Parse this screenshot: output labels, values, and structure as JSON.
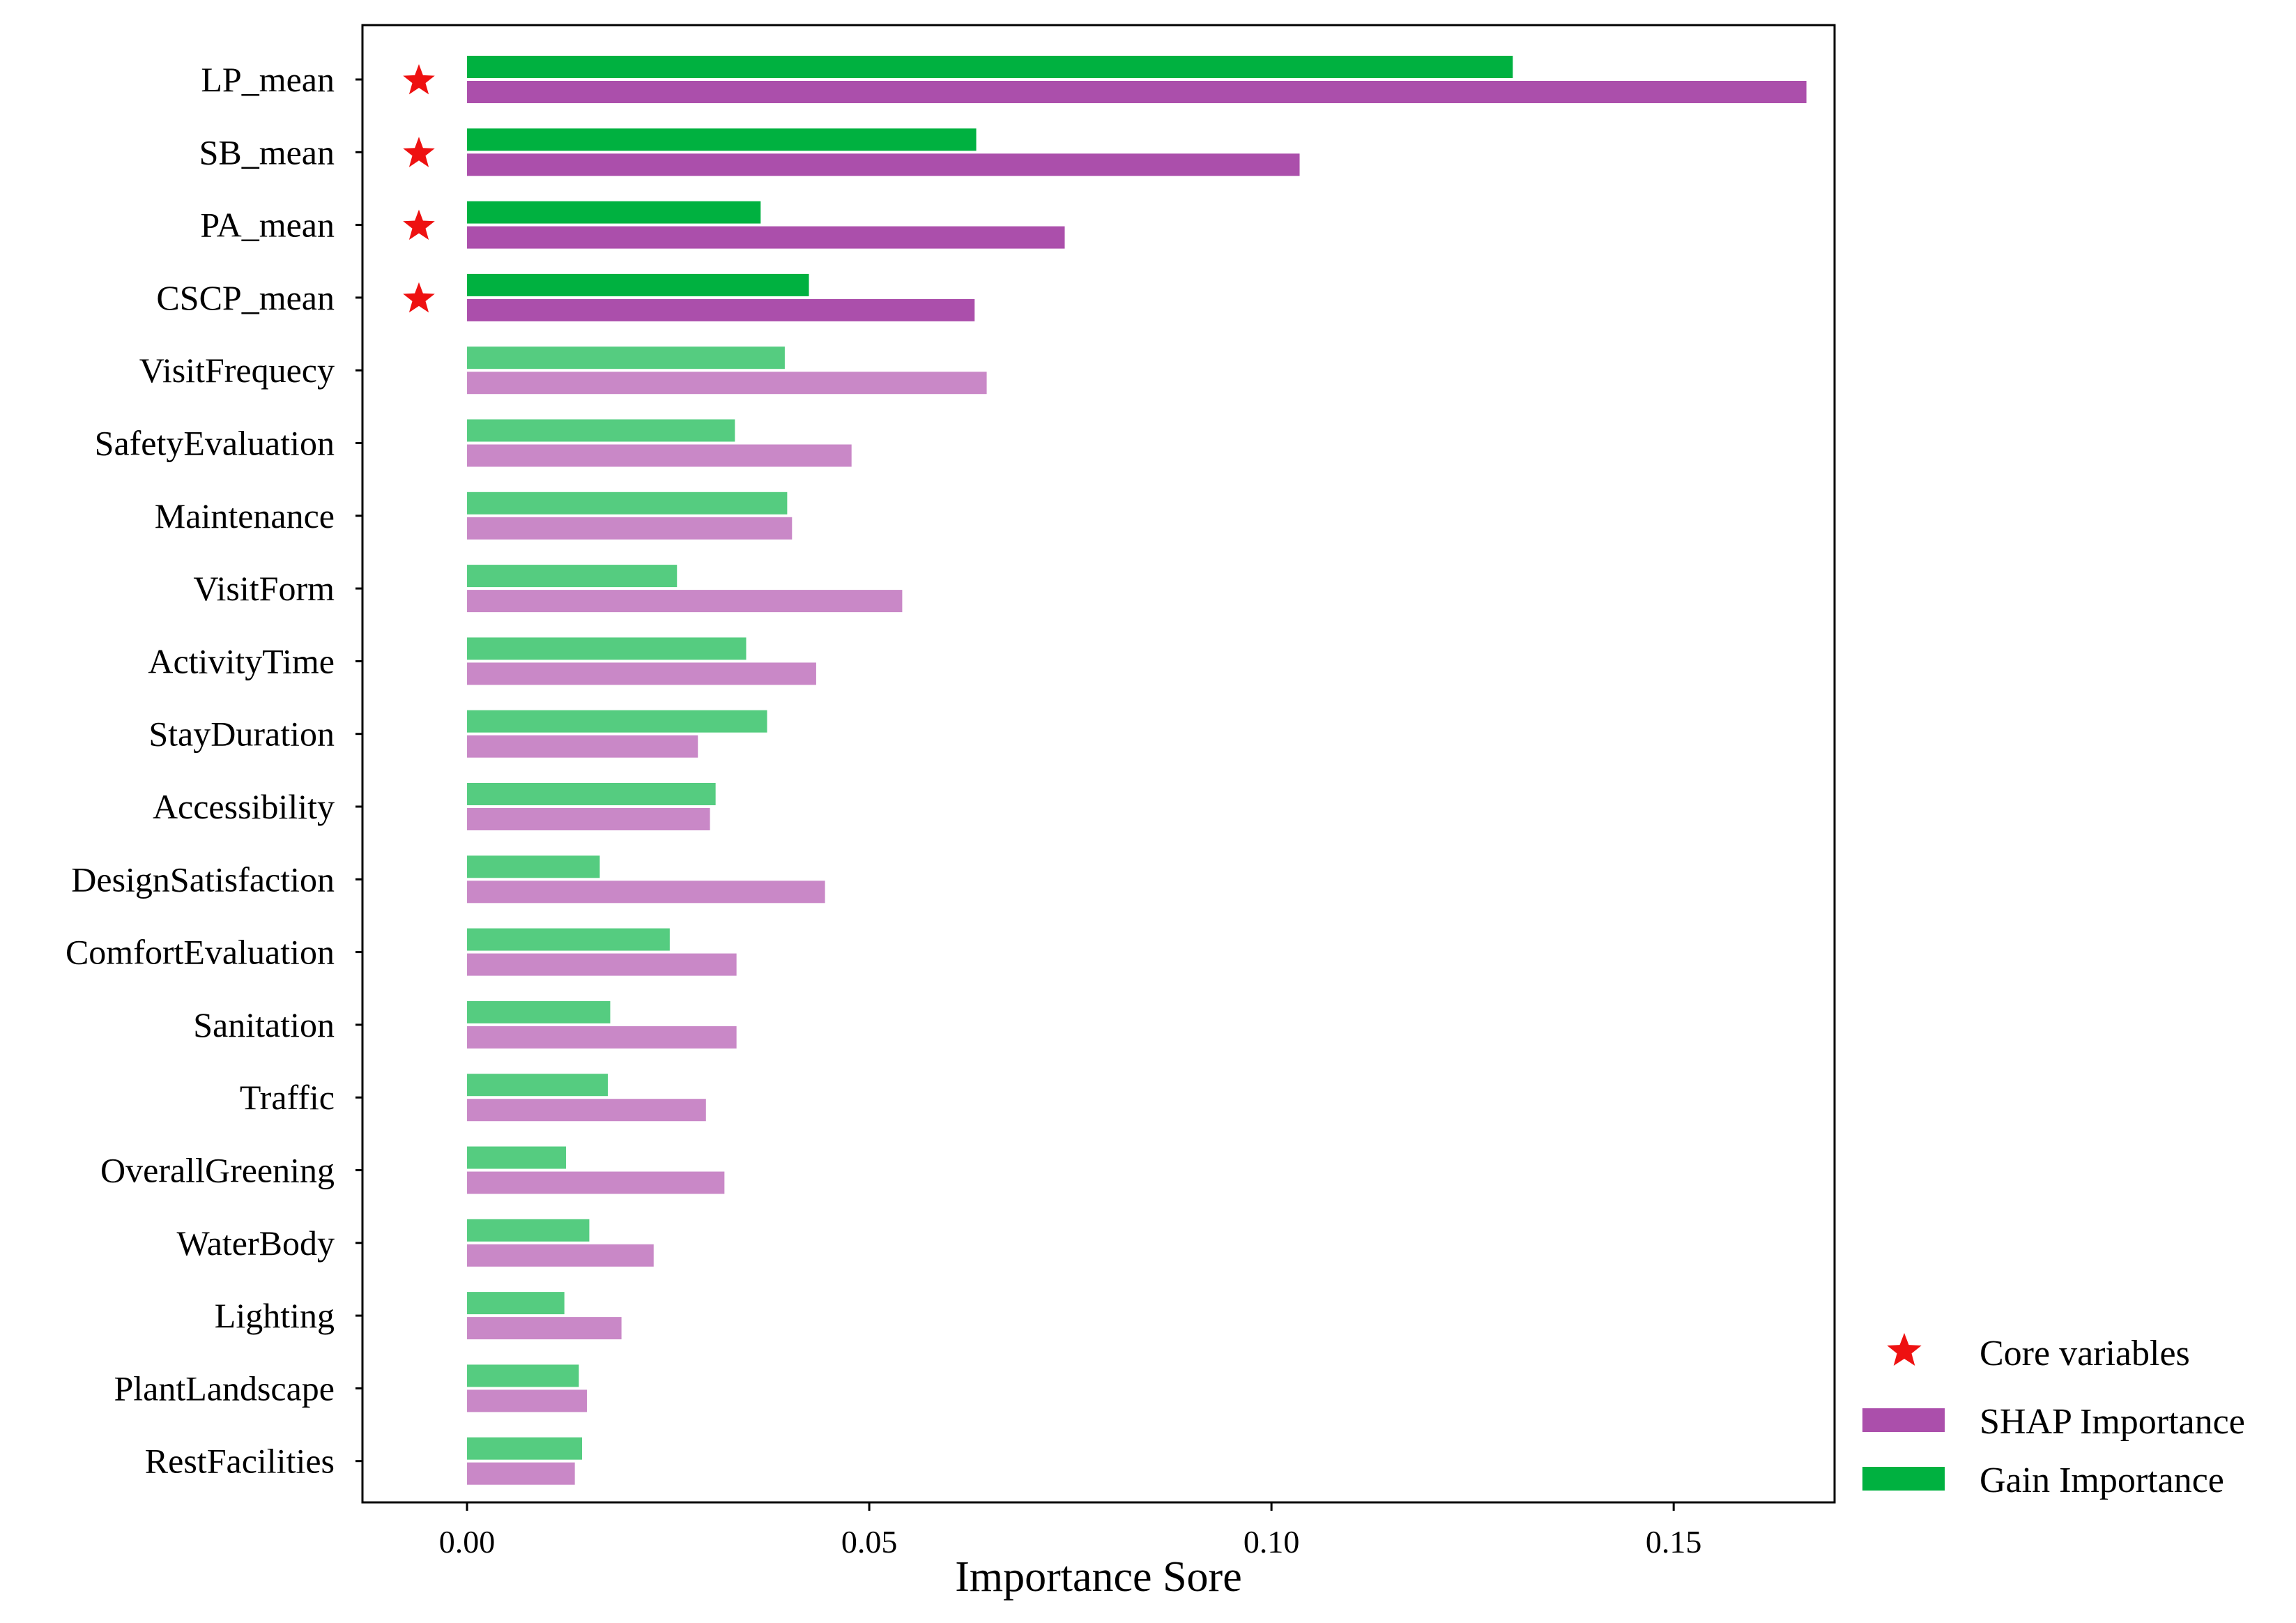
{
  "chart_data": {
    "type": "bar",
    "orientation": "horizontal",
    "categories": [
      "LP_mean",
      "SB_mean",
      "PA_mean",
      "CSCP_mean",
      "VisitFrequecy",
      "SafetyEvaluation",
      "Maintenance",
      "VisitForm",
      "ActivityTime",
      "StayDuration",
      "Accessibility",
      "DesignSatisfaction",
      "ComfortEvaluation",
      "Sanitation",
      "Traffic",
      "OverallGreening",
      "WaterBody",
      "Lighting",
      "PlantLandscape",
      "RestFacilities"
    ],
    "core": [
      true,
      true,
      true,
      true,
      false,
      false,
      false,
      false,
      false,
      false,
      false,
      false,
      false,
      false,
      false,
      false,
      false,
      false,
      false,
      false
    ],
    "series": [
      {
        "name": "Gain Importance",
        "color": "#00b140",
        "light_color": "#55cc80",
        "values": [
          0.13,
          0.0633,
          0.0365,
          0.0425,
          0.0395,
          0.0333,
          0.0398,
          0.0261,
          0.0347,
          0.0373,
          0.0309,
          0.0165,
          0.0252,
          0.0178,
          0.0175,
          0.0123,
          0.0152,
          0.0121,
          0.0139,
          0.0143
        ]
      },
      {
        "name": "SHAP Importance",
        "color": "#ab4fab",
        "light_color": "#c988c7",
        "values": [
          0.1665,
          0.1035,
          0.0743,
          0.0631,
          0.0646,
          0.0478,
          0.0404,
          0.0541,
          0.0434,
          0.0287,
          0.0302,
          0.0445,
          0.0335,
          0.0335,
          0.0297,
          0.032,
          0.0232,
          0.0192,
          0.0149,
          0.0134
        ]
      }
    ],
    "xticks": [
      "0.00",
      "0.05",
      "0.10",
      "0.15"
    ],
    "xtick_values": [
      0,
      0.05,
      0.1,
      0.15
    ],
    "xlim": [
      -0.013,
      0.17
    ],
    "xlabel": "Importance Sore",
    "ylabel": "",
    "title": "",
    "grid": false,
    "legend_position": "bottom-right outside",
    "legend": [
      {
        "label": "Core variables",
        "marker": "star",
        "color": "#ee1111"
      },
      {
        "label": "SHAP Importance",
        "marker": "rect",
        "color": "#ab4fab"
      },
      {
        "label": "Gain Importance",
        "marker": "rect",
        "color": "#00b140"
      }
    ]
  }
}
